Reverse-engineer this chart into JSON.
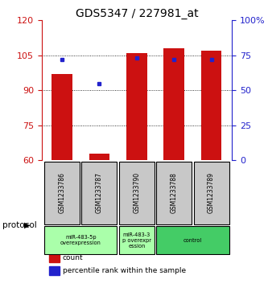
{
  "title": "GDS5347 / 227981_at",
  "samples": [
    "GSM1233786",
    "GSM1233787",
    "GSM1233790",
    "GSM1233788",
    "GSM1233789"
  ],
  "counts": [
    97,
    63,
    106,
    108,
    107
  ],
  "percentiles": [
    72,
    55,
    73,
    72,
    72
  ],
  "ylim_left": [
    60,
    120
  ],
  "ylim_right": [
    0,
    100
  ],
  "yticks_left": [
    60,
    75,
    90,
    105,
    120
  ],
  "yticks_right": [
    0,
    25,
    50,
    75,
    100
  ],
  "bar_color": "#CC1111",
  "dot_color": "#2222CC",
  "group_bg_color": "#C8C8C8",
  "bar_width": 0.55,
  "proto_spans": [
    [
      0,
      1,
      "miR-483-5p\noverexpression",
      "#AAFFAA"
    ],
    [
      2,
      2,
      "miR-483-3\np overexpr\nession",
      "#AAFFAA"
    ],
    [
      3,
      4,
      "control",
      "#44CC66"
    ]
  ],
  "legend_items": [
    [
      "#CC1111",
      "count"
    ],
    [
      "#2222CC",
      "percentile rank within the sample"
    ]
  ]
}
